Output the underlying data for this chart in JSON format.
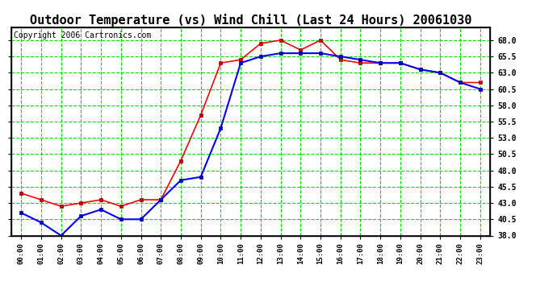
{
  "title": "Outdoor Temperature (vs) Wind Chill (Last 24 Hours) 20061030",
  "copyright": "Copyright 2006 Cartronics.com",
  "x_labels": [
    "00:00",
    "01:00",
    "02:00",
    "03:00",
    "04:00",
    "05:00",
    "06:00",
    "07:00",
    "08:00",
    "09:00",
    "10:00",
    "11:00",
    "12:00",
    "13:00",
    "14:00",
    "15:00",
    "16:00",
    "17:00",
    "18:00",
    "19:00",
    "20:00",
    "21:00",
    "22:00",
    "23:00"
  ],
  "temp": [
    44.5,
    43.5,
    42.5,
    43.0,
    43.5,
    42.5,
    43.5,
    43.5,
    49.5,
    56.5,
    64.5,
    65.0,
    67.5,
    68.0,
    66.5,
    68.0,
    65.0,
    64.5,
    64.5,
    64.5,
    63.5,
    63.0,
    61.5,
    61.5
  ],
  "wind_chill": [
    41.5,
    40.0,
    38.0,
    41.0,
    42.0,
    40.5,
    40.5,
    43.5,
    46.5,
    47.0,
    54.5,
    64.5,
    65.5,
    66.0,
    66.0,
    66.0,
    65.5,
    65.0,
    64.5,
    64.5,
    63.5,
    63.0,
    61.5,
    60.5
  ],
  "temp_color": "#ff0000",
  "wind_chill_color": "#0000ff",
  "grid_color_gray": "#888888",
  "grid_color_green": "#00dd00",
  "background_color": "#ffffff",
  "ylim_min": 38.0,
  "ylim_max": 70.0,
  "yticks": [
    38.0,
    40.5,
    43.0,
    45.5,
    48.0,
    50.5,
    53.0,
    55.5,
    58.0,
    60.5,
    63.0,
    65.5,
    68.0
  ],
  "title_fontsize": 11,
  "copyright_fontsize": 7,
  "marker_size": 3.5
}
